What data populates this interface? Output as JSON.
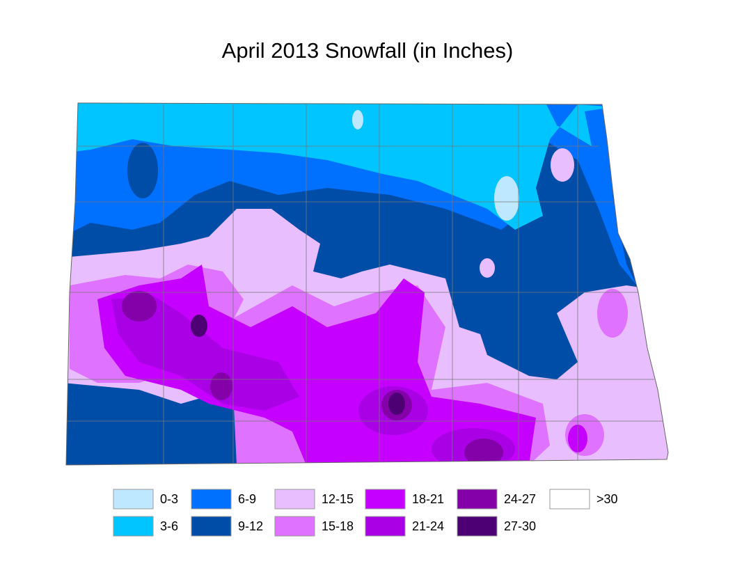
{
  "title": "April 2013 Snowfall (in Inches)",
  "legend": {
    "items": [
      {
        "label": "0-3",
        "color": "#bee8ff"
      },
      {
        "label": "3-6",
        "color": "#00c5ff"
      },
      {
        "label": "6-9",
        "color": "#0070ff"
      },
      {
        "label": "9-12",
        "color": "#004da8"
      },
      {
        "label": "12-15",
        "color": "#e8beff"
      },
      {
        "label": "15-18",
        "color": "#df73ff"
      },
      {
        "label": "18-21",
        "color": "#c500ff"
      },
      {
        "label": "21-24",
        "color": "#a900e6"
      },
      {
        "label": "24-27",
        "color": "#8400a8"
      },
      {
        "label": "27-30",
        "color": "#4c0073"
      },
      {
        "label": ">30",
        "color": "#ffffff"
      }
    ]
  }
}
